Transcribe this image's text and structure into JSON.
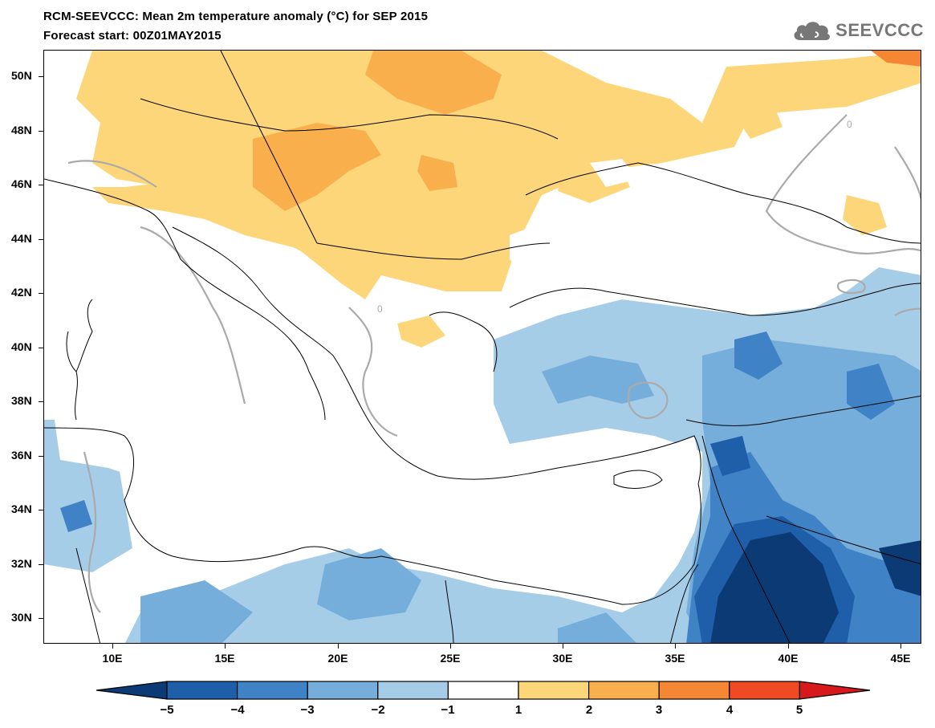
{
  "title": {
    "line1": "RCM-SEEVCCC: Mean 2m temperature anomaly (°C) for SEP 2015",
    "line2": "Forecast start: 00Z01MAY2015"
  },
  "logo": {
    "text": "SEEVCCC",
    "icon": "cloud-icon",
    "color": "#777777"
  },
  "map": {
    "projection": "lat-lon",
    "lon_range": [
      7,
      46
    ],
    "lat_range": [
      29,
      51
    ],
    "lat_labels": [
      "50N",
      "48N",
      "46N",
      "44N",
      "42N",
      "40N",
      "38N",
      "36N",
      "34N",
      "32N",
      "30N"
    ],
    "lon_labels": [
      "10E",
      "15E",
      "20E",
      "25E",
      "30E",
      "35E",
      "40E",
      "45E"
    ],
    "contour_label": "0",
    "contour_color": "#aaaaaa",
    "coastline_color": "#000000"
  },
  "colorbar": {
    "labels": [
      "−5",
      "−4",
      "−3",
      "−2",
      "−1",
      "1",
      "2",
      "3",
      "4",
      "5"
    ],
    "colors": [
      "#0b3a74",
      "#1f5ea8",
      "#3f82c6",
      "#76aedb",
      "#a6cde8",
      "#ffffff",
      "#fdd67a",
      "#f9b04c",
      "#f58634",
      "#f04a25",
      "#d7191c"
    ]
  }
}
